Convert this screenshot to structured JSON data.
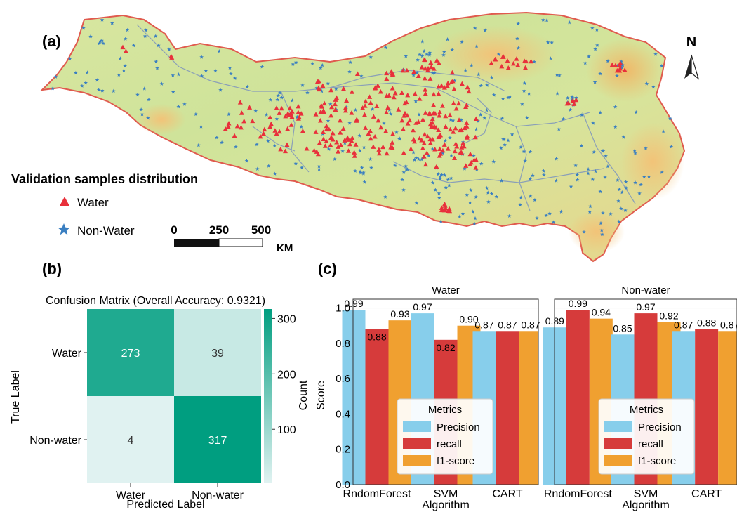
{
  "panel_a": {
    "label": "(a)",
    "north_label": "N",
    "legend_title": "Validation samples distribution",
    "legend_water": "Water",
    "legend_nonwater": "Non-Water",
    "scale_ticks": [
      "0",
      "250",
      "500"
    ],
    "scale_unit": "KM",
    "colors": {
      "water": "#e8303b",
      "nonwater": "#3a7fc1",
      "border": "#e05a4e",
      "river": "#8a9fb8"
    }
  },
  "panel_b": {
    "label": "(b)",
    "title": "Confusion Matrix (Overall Accuracy: 0.9321)",
    "xlabel": "Predicted Label",
    "ylabel": "True Label",
    "x_ticks": [
      "Water",
      "Non-water"
    ],
    "y_ticks": [
      "Water",
      "Non-water"
    ],
    "colorbar_label": "Count",
    "colorbar_ticks": [
      100,
      200,
      300
    ]
  },
  "panel_c": {
    "label": "(c)",
    "ylabel": "Score",
    "xlabel": "Algorithm",
    "legend_title": "Metrics",
    "y_ticks": [
      "0.0",
      "0.2",
      "0.4",
      "0.6",
      "0.8",
      "1.0"
    ]
  },
  "chart_data": [
    {
      "type": "heatmap",
      "title": "Confusion Matrix (Overall Accuracy: 0.9321)",
      "xlabel": "Predicted Label",
      "ylabel": "True Label",
      "x_categories": [
        "Water",
        "Non-water"
      ],
      "y_categories": [
        "Water",
        "Non-water"
      ],
      "values": [
        [
          273,
          39
        ],
        [
          4,
          317
        ]
      ],
      "colorbar_range": [
        4,
        317
      ],
      "colormap": [
        "#e0f2f1",
        "#009e80"
      ]
    },
    {
      "type": "bar",
      "title": "Water",
      "xlabel": "Algorithm",
      "ylabel": "Score",
      "ylim": [
        0,
        1.05
      ],
      "categories": [
        "RndomForest",
        "SVM",
        "CART"
      ],
      "series": [
        {
          "name": "Precision",
          "values": [
            0.99,
            0.97,
            0.87
          ],
          "color": "#87ceeb"
        },
        {
          "name": "recall",
          "values": [
            0.88,
            0.82,
            0.87
          ],
          "color": "#d63b3b"
        },
        {
          "name": "f1-score",
          "values": [
            0.93,
            0.9,
            0.87
          ],
          "color": "#f0a030"
        }
      ],
      "legend": "lower-center"
    },
    {
      "type": "bar",
      "title": "Non-water",
      "xlabel": "Algorithm",
      "ylabel": "Score",
      "ylim": [
        0,
        1.05
      ],
      "categories": [
        "RndomForest",
        "SVM",
        "CART"
      ],
      "series": [
        {
          "name": "Precision",
          "values": [
            0.89,
            0.85,
            0.87
          ],
          "color": "#87ceeb"
        },
        {
          "name": "recall",
          "values": [
            0.99,
            0.97,
            0.88
          ],
          "color": "#d63b3b"
        },
        {
          "name": "f1-score",
          "values": [
            0.94,
            0.92,
            0.87
          ],
          "color": "#f0a030"
        }
      ],
      "legend": "lower-center"
    }
  ]
}
